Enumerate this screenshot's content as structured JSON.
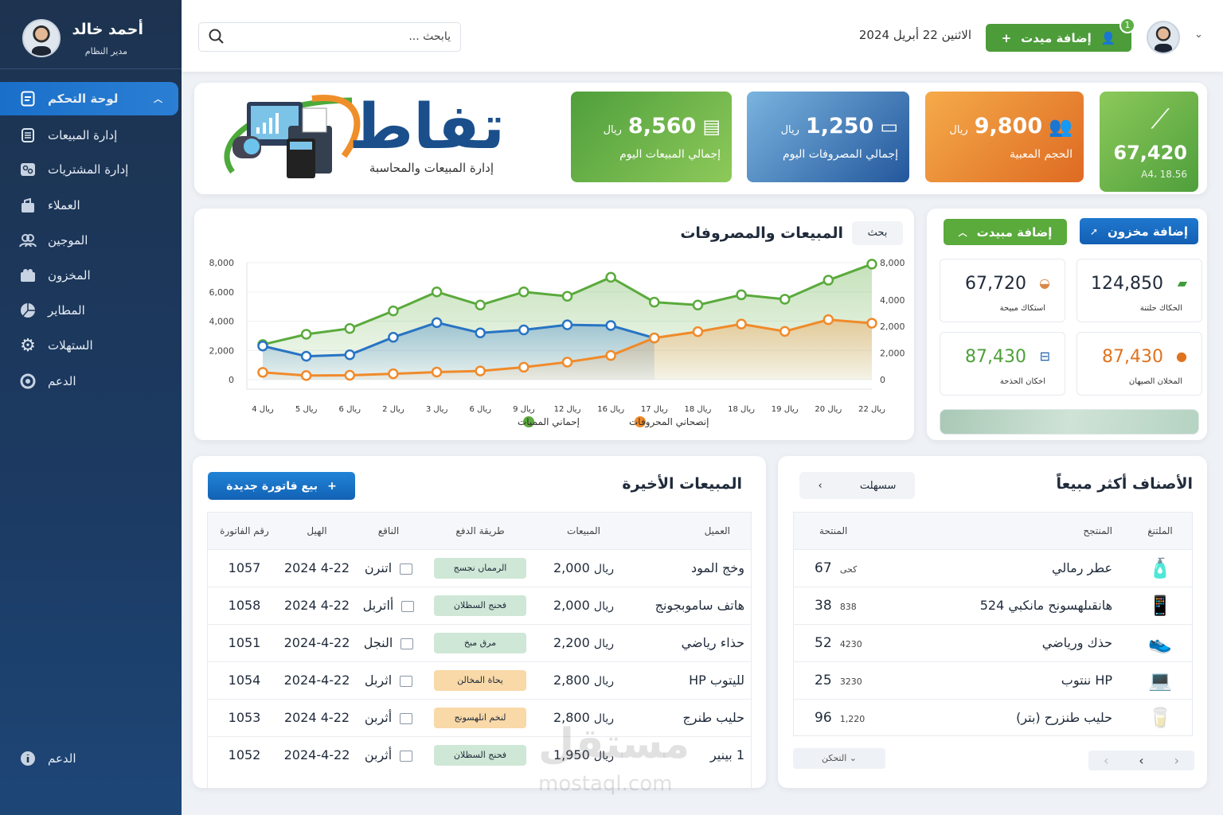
{
  "sidebar": {
    "user_name": "أحمد خالد",
    "user_role": "مدير النظام",
    "items": [
      {
        "label": "لوحة التحكم",
        "icon": "document-icon"
      },
      {
        "label": "إدارة المبيعات",
        "icon": "list-icon"
      },
      {
        "label": "إدارة المشتريات",
        "icon": "link-icon"
      },
      {
        "label": "العملاء",
        "icon": "lock-bag-icon"
      },
      {
        "label": "الموجين",
        "icon": "users-icon"
      },
      {
        "label": "المخزون",
        "icon": "box-icon"
      },
      {
        "label": "المطاير",
        "icon": "pie-chart-icon"
      },
      {
        "label": "الستهلات",
        "icon": "gear-icon"
      },
      {
        "label": "الدعم",
        "icon": "support-icon"
      }
    ],
    "bottom_label": "الدعم"
  },
  "header": {
    "search_placeholder": "يابحث ...",
    "date": "الاثنين 22 أبريل 2024",
    "add_button": "إضافة ميدت",
    "badge": "1"
  },
  "banner": {
    "logo_text": "تفاط",
    "logo_subtitle": "إدارة المبيعات والمحاسبة"
  },
  "stats": [
    {
      "value": "67,420",
      "label": "A4، 18.56",
      "color": "#6bb84a"
    },
    {
      "value": "9,800",
      "unit": "ريال",
      "label": "الحجم المعبية",
      "color": "#ec8a2c"
    },
    {
      "value": "1,250",
      "unit": "ريال",
      "label": "إجمالي المصروفات اليوم",
      "color": "#2f6eb5"
    },
    {
      "value": "8,560",
      "unit": "ريال",
      "label": "إجمالي المبيعات اليوم",
      "color": "#5aaa45"
    }
  ],
  "chart_card": {
    "title": "المبيعات والمصروفات",
    "filter_button": "بحث"
  },
  "chart_data": {
    "type": "area",
    "title": "المبيعات والمصروفات",
    "categories": [
      "ريال 4",
      "ريال 5",
      "ريال 6",
      "ريال 2",
      "ريال 3",
      "ريال 6",
      "ريال 9",
      "ريال 12",
      "ريال 16",
      "ريال 17",
      "ريال 18",
      "ريال 18",
      "ريال 19",
      "ريال 20",
      "ريال 22"
    ],
    "y_left_ticks": [
      "0",
      "2,000",
      "4,000",
      "6,000",
      "8,000"
    ],
    "y_right_ticks": [
      "0",
      "2,000",
      "2,000",
      "4,000",
      "8,000"
    ],
    "ylim": [
      0,
      8000
    ],
    "grid": true,
    "legend": "bottom-center",
    "series": [
      {
        "name": "إحماني المميات",
        "color": "#5aaa3c",
        "values": [
          2400,
          3100,
          3500,
          4700,
          6000,
          5100,
          6000,
          5700,
          7000,
          5300,
          5100,
          5800,
          5500,
          6800,
          7900
        ]
      },
      {
        "color": "#2874c4",
        "values": [
          2300,
          1600,
          1700,
          2900,
          3900,
          3200,
          3400,
          3750,
          3700,
          2850,
          null,
          null,
          null,
          null,
          null
        ]
      },
      {
        "name": "إنصحاني المحروفات",
        "color": "#f08a2a",
        "values": [
          500,
          280,
          300,
          400,
          520,
          590,
          850,
          1200,
          1650,
          2850,
          3280,
          3800,
          3300,
          4100,
          3860
        ]
      }
    ]
  },
  "quick": {
    "add_sale": "إضافة مبيدت",
    "add_stock": "إضافة مخزون",
    "cards": [
      {
        "value": "124,850",
        "label": "الحكاك حلتنة",
        "color": "#1f2a3a",
        "icon": "money-icon"
      },
      {
        "value": "67,720",
        "label": "استكاك مبيحة",
        "color": "#1f2a3a",
        "icon": "basket-icon"
      },
      {
        "value": "87,430",
        "label": "المخلان الصيهان",
        "color": "#e0731f",
        "icon": "alert-icon"
      },
      {
        "value": "87,430",
        "label": "اخكان الحذحة",
        "color": "#4da03a",
        "icon": "cart-icon"
      }
    ]
  },
  "recent": {
    "title": "المبيعات الأخيرة",
    "new_button": "بيع فاتورة جديدة",
    "columns": [
      "العميل",
      "المبيعات",
      "طريقة الدفع",
      "الناقع",
      "الهيل",
      "رقم الفاتورة"
    ],
    "rows": [
      {
        "customer": "وخج المود",
        "amount": "2,000",
        "currency": "ريال",
        "method": "الرمماں نجسج",
        "method_color": "green",
        "day": "اتنرن",
        "date": "2024 4-22",
        "invoice": "1057"
      },
      {
        "customer": "هاتف ساموبجونج",
        "amount": "2,000",
        "currency": "ريال",
        "method": "فحنج السظلان",
        "method_color": "green",
        "day": "أاتربل",
        "date": "2024 4-22",
        "invoice": "1058"
      },
      {
        "customer": "حذاء رياضي",
        "amount": "2,200",
        "currency": "ريال",
        "method": "مرق مبخ",
        "method_color": "green",
        "day": "النجل",
        "date": "2024-4-22",
        "invoice": "1051"
      },
      {
        "customer": "لليتوب HP",
        "amount": "2,800",
        "currency": "ريال",
        "method": "يحاة المخالن",
        "method_color": "orange",
        "day": "اثربل",
        "date": "2024-4-22",
        "invoice": "1054"
      },
      {
        "customer": "حليب طنرج",
        "amount": "2,800",
        "currency": "ريال",
        "method": "لنخم انلهسونج",
        "method_color": "orange",
        "day": "أثربن",
        "date": "2024 4-22",
        "invoice": "1053"
      },
      {
        "customer": "1 بينير",
        "amount": "1,950",
        "currency": "ريال",
        "method": "فحنج السظلان",
        "method_color": "green",
        "day": "أثربن",
        "date": "2024-4-22",
        "invoice": "1052"
      }
    ]
  },
  "top": {
    "title": "الأصناف أكثر مبيعاً",
    "filter": "سسهلت",
    "columns": [
      "الملتنغ",
      "المنتجح",
      "المنتحة"
    ],
    "rows": [
      {
        "image": "perfume-icon",
        "name": "عطر رمالي",
        "small": "كحى",
        "qty": "67"
      },
      {
        "image": "tablet-icon",
        "name": "هانقىلهسونح مانكبي 524",
        "small": "838",
        "qty": "38"
      },
      {
        "image": "shoe-icon",
        "name": "حذك ورياضي",
        "small": "4230",
        "qty": "52"
      },
      {
        "image": "laptop-icon",
        "name": "HP ننتوب",
        "small": "3230",
        "qty": "25"
      },
      {
        "image": "milk-icon",
        "name": "حليب طنزرح (بتر)",
        "small": "1,220",
        "qty": "96"
      }
    ],
    "more": "التحكن"
  },
  "watermark": {
    "ar": "مستقل",
    "en": "mostaql.com"
  }
}
